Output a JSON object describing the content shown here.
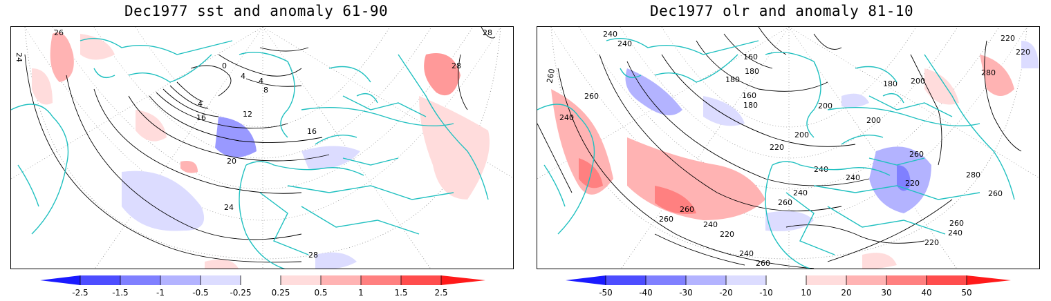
{
  "panels": [
    {
      "title": "Dec1977 sst and anomaly 61-90",
      "contour_labels": [
        "0",
        "4",
        "4",
        "4",
        "8",
        "12",
        "16",
        "16",
        "20",
        "24",
        "24",
        "28",
        "28",
        "26",
        "28"
      ],
      "colorbar": {
        "ticks": [
          "-2.5",
          "-1.5",
          "-1",
          "-0.5",
          "-0.25",
          "0.25",
          "0.5",
          "1",
          "1.5",
          "2.5"
        ],
        "colors": [
          "#1a1aff",
          "#4d4dff",
          "#8080ff",
          "#b3b3ff",
          "#dcdcff",
          "#ffffff",
          "#ffdcdc",
          "#ffb3b3",
          "#ff8080",
          "#ff4d4d",
          "#ff1a1a"
        ]
      }
    },
    {
      "title": "Dec1977 olr and anomaly 81-10",
      "contour_labels": [
        "240",
        "160",
        "180",
        "180",
        "160",
        "180",
        "200",
        "220",
        "260",
        "280",
        "260",
        "240",
        "200",
        "200",
        "180",
        "220",
        "240",
        "240",
        "240",
        "260",
        "280",
        "260",
        "260",
        "240",
        "220",
        "260",
        "240",
        "220",
        "220",
        "240",
        "260",
        "260",
        "240",
        "260",
        "220",
        "200"
      ],
      "colorbar": {
        "ticks": [
          "-50",
          "-40",
          "-30",
          "-20",
          "-10",
          "10",
          "20",
          "30",
          "40",
          "50"
        ],
        "colors": [
          "#1a1aff",
          "#4d4dff",
          "#8080ff",
          "#b3b3ff",
          "#dcdcff",
          "#ffffff",
          "#ffdcdc",
          "#ffb3b3",
          "#ff8080",
          "#ff4d4d",
          "#ff1a1a"
        ]
      }
    }
  ],
  "colors": {
    "coastline": "#20c0c0",
    "contour": "#000000",
    "positive_anomaly": "#ff9999",
    "negative_anomaly": "#9999ff"
  }
}
